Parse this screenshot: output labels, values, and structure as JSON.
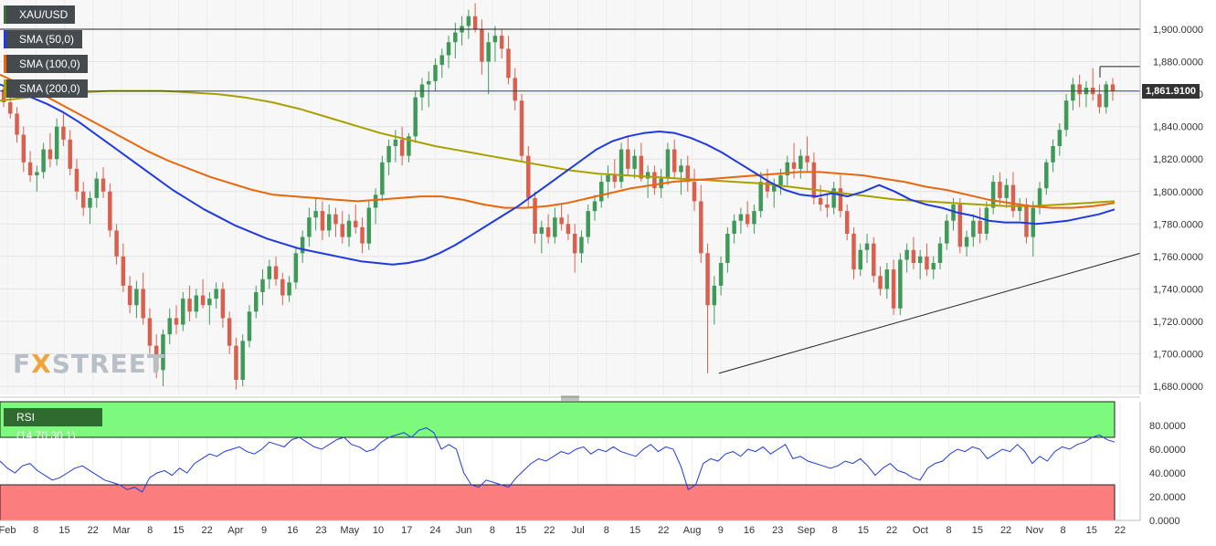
{
  "chart_data": {
    "type": "candlestick",
    "symbol": "XAU/USD",
    "indicators": [
      {
        "name": "SMA (50,0)",
        "color": "#1f3ae0"
      },
      {
        "name": "SMA (100,0)",
        "color": "#e8670c"
      },
      {
        "name": "SMA (200,0)",
        "color": "#a9a000"
      }
    ],
    "last_price": "1,861.9100",
    "price_axis": {
      "ylim": [
        1675,
        1918
      ],
      "ticks": [
        "1,680.0000",
        "1,700.0000",
        "1,720.0000",
        "1,740.0000",
        "1,760.0000",
        "1,780.0000",
        "1,800.0000",
        "1,820.0000",
        "1,840.0000",
        "1,860.0000",
        "1,880.0000",
        "1,900.0000"
      ]
    },
    "x_axis": {
      "labels": [
        "Feb",
        "8",
        "15",
        "22",
        "Mar",
        "8",
        "15",
        "22",
        "Apr",
        "9",
        "16",
        "23",
        "May",
        "10",
        "17",
        "24",
        "Jun",
        "8",
        "15",
        "22",
        "Jul",
        "8",
        "15",
        "22",
        "Aug",
        "9",
        "16",
        "23",
        "Sep",
        "8",
        "15",
        "22",
        "Oct",
        "8",
        "15",
        "22",
        "Nov",
        "8",
        "15",
        "22"
      ]
    },
    "horizontal_lines": [
      1900,
      1861.91
    ],
    "resistance_stub": 1877,
    "trendline": {
      "from": [
        "Aug 9",
        1688
      ],
      "to": [
        "Nov 22",
        1760
      ]
    },
    "candles_ohlc": [
      [
        1863,
        1866,
        1852,
        1855
      ],
      [
        1855,
        1858,
        1845,
        1848
      ],
      [
        1848,
        1852,
        1830,
        1835
      ],
      [
        1835,
        1840,
        1812,
        1818
      ],
      [
        1818,
        1825,
        1806,
        1810
      ],
      [
        1810,
        1816,
        1800,
        1812
      ],
      [
        1812,
        1830,
        1808,
        1826
      ],
      [
        1826,
        1836,
        1815,
        1820
      ],
      [
        1820,
        1845,
        1816,
        1840
      ],
      [
        1840,
        1848,
        1828,
        1832
      ],
      [
        1832,
        1838,
        1810,
        1814
      ],
      [
        1814,
        1820,
        1795,
        1800
      ],
      [
        1800,
        1806,
        1785,
        1790
      ],
      [
        1790,
        1800,
        1780,
        1796
      ],
      [
        1796,
        1812,
        1790,
        1808
      ],
      [
        1808,
        1815,
        1796,
        1800
      ],
      [
        1800,
        1805,
        1772,
        1776
      ],
      [
        1776,
        1780,
        1755,
        1760
      ],
      [
        1760,
        1768,
        1738,
        1742
      ],
      [
        1742,
        1748,
        1725,
        1730
      ],
      [
        1730,
        1745,
        1722,
        1740
      ],
      [
        1740,
        1750,
        1718,
        1722
      ],
      [
        1722,
        1728,
        1700,
        1705
      ],
      [
        1705,
        1712,
        1685,
        1690
      ],
      [
        1690,
        1715,
        1680,
        1712
      ],
      [
        1712,
        1728,
        1706,
        1722
      ],
      [
        1722,
        1730,
        1712,
        1718
      ],
      [
        1718,
        1738,
        1714,
        1734
      ],
      [
        1734,
        1742,
        1720,
        1726
      ],
      [
        1726,
        1740,
        1722,
        1736
      ],
      [
        1736,
        1746,
        1728,
        1730
      ],
      [
        1730,
        1738,
        1718,
        1734
      ],
      [
        1734,
        1744,
        1728,
        1740
      ],
      [
        1740,
        1744,
        1716,
        1722
      ],
      [
        1722,
        1726,
        1700,
        1705
      ],
      [
        1705,
        1710,
        1678,
        1684
      ],
      [
        1684,
        1712,
        1680,
        1708
      ],
      [
        1708,
        1730,
        1704,
        1726
      ],
      [
        1726,
        1742,
        1722,
        1738
      ],
      [
        1738,
        1752,
        1730,
        1746
      ],
      [
        1746,
        1758,
        1740,
        1754
      ],
      [
        1754,
        1760,
        1742,
        1746
      ],
      [
        1746,
        1750,
        1730,
        1736
      ],
      [
        1736,
        1748,
        1732,
        1744
      ],
      [
        1744,
        1766,
        1740,
        1762
      ],
      [
        1762,
        1776,
        1756,
        1772
      ],
      [
        1772,
        1790,
        1766,
        1784
      ],
      [
        1784,
        1796,
        1776,
        1788
      ],
      [
        1788,
        1794,
        1770,
        1776
      ],
      [
        1776,
        1792,
        1772,
        1786
      ],
      [
        1786,
        1790,
        1772,
        1780
      ],
      [
        1780,
        1788,
        1768,
        1772
      ],
      [
        1772,
        1786,
        1766,
        1782
      ],
      [
        1782,
        1792,
        1774,
        1778
      ],
      [
        1778,
        1784,
        1762,
        1768
      ],
      [
        1768,
        1794,
        1764,
        1790
      ],
      [
        1790,
        1802,
        1780,
        1798
      ],
      [
        1798,
        1822,
        1794,
        1818
      ],
      [
        1818,
        1832,
        1810,
        1828
      ],
      [
        1828,
        1838,
        1818,
        1832
      ],
      [
        1832,
        1840,
        1816,
        1822
      ],
      [
        1822,
        1836,
        1818,
        1834
      ],
      [
        1834,
        1862,
        1830,
        1858
      ],
      [
        1858,
        1870,
        1850,
        1866
      ],
      [
        1866,
        1874,
        1852,
        1868
      ],
      [
        1868,
        1882,
        1862,
        1878
      ],
      [
        1878,
        1888,
        1870,
        1884
      ],
      [
        1884,
        1896,
        1876,
        1892
      ],
      [
        1892,
        1904,
        1882,
        1898
      ],
      [
        1898,
        1908,
        1890,
        1902
      ],
      [
        1902,
        1912,
        1894,
        1908
      ],
      [
        1908,
        1916,
        1898,
        1900
      ],
      [
        1900,
        1906,
        1872,
        1880
      ],
      [
        1880,
        1898,
        1860,
        1892
      ],
      [
        1892,
        1902,
        1880,
        1896
      ],
      [
        1896,
        1900,
        1882,
        1888
      ],
      [
        1888,
        1896,
        1866,
        1870
      ],
      [
        1870,
        1876,
        1850,
        1856
      ],
      [
        1856,
        1860,
        1818,
        1822
      ],
      [
        1822,
        1828,
        1790,
        1796
      ],
      [
        1796,
        1800,
        1768,
        1774
      ],
      [
        1774,
        1782,
        1762,
        1778
      ],
      [
        1778,
        1786,
        1768,
        1772
      ],
      [
        1772,
        1790,
        1768,
        1784
      ],
      [
        1784,
        1792,
        1776,
        1780
      ],
      [
        1780,
        1786,
        1770,
        1774
      ],
      [
        1774,
        1780,
        1750,
        1762
      ],
      [
        1762,
        1776,
        1756,
        1772
      ],
      [
        1772,
        1792,
        1768,
        1788
      ],
      [
        1788,
        1798,
        1782,
        1794
      ],
      [
        1794,
        1810,
        1790,
        1806
      ],
      [
        1806,
        1816,
        1796,
        1810
      ],
      [
        1810,
        1820,
        1802,
        1806
      ],
      [
        1806,
        1830,
        1802,
        1826
      ],
      [
        1826,
        1834,
        1810,
        1814
      ],
      [
        1814,
        1826,
        1808,
        1822
      ],
      [
        1822,
        1830,
        1806,
        1808
      ],
      [
        1808,
        1816,
        1796,
        1812
      ],
      [
        1812,
        1816,
        1798,
        1802
      ],
      [
        1802,
        1814,
        1796,
        1808
      ],
      [
        1808,
        1830,
        1804,
        1826
      ],
      [
        1826,
        1832,
        1808,
        1812
      ],
      [
        1812,
        1820,
        1798,
        1816
      ],
      [
        1816,
        1822,
        1800,
        1806
      ],
      [
        1806,
        1814,
        1788,
        1794
      ],
      [
        1794,
        1804,
        1756,
        1762
      ],
      [
        1762,
        1768,
        1688,
        1730
      ],
      [
        1730,
        1748,
        1718,
        1742
      ],
      [
        1742,
        1760,
        1736,
        1756
      ],
      [
        1756,
        1778,
        1750,
        1774
      ],
      [
        1774,
        1786,
        1768,
        1782
      ],
      [
        1782,
        1790,
        1774,
        1786
      ],
      [
        1786,
        1794,
        1778,
        1780
      ],
      [
        1780,
        1792,
        1774,
        1788
      ],
      [
        1788,
        1812,
        1784,
        1806
      ],
      [
        1806,
        1814,
        1796,
        1800
      ],
      [
        1800,
        1808,
        1790,
        1804
      ],
      [
        1804,
        1814,
        1798,
        1810
      ],
      [
        1810,
        1822,
        1804,
        1818
      ],
      [
        1818,
        1830,
        1808,
        1814
      ],
      [
        1814,
        1826,
        1808,
        1822
      ],
      [
        1822,
        1834,
        1812,
        1818
      ],
      [
        1818,
        1824,
        1792,
        1796
      ],
      [
        1796,
        1804,
        1788,
        1792
      ],
      [
        1792,
        1798,
        1784,
        1790
      ],
      [
        1790,
        1806,
        1786,
        1802
      ],
      [
        1802,
        1810,
        1784,
        1788
      ],
      [
        1788,
        1792,
        1770,
        1774
      ],
      [
        1774,
        1778,
        1746,
        1752
      ],
      [
        1752,
        1768,
        1748,
        1764
      ],
      [
        1764,
        1774,
        1756,
        1768
      ],
      [
        1768,
        1772,
        1744,
        1748
      ],
      [
        1748,
        1754,
        1736,
        1740
      ],
      [
        1740,
        1756,
        1734,
        1752
      ],
      [
        1752,
        1758,
        1724,
        1728
      ],
      [
        1728,
        1762,
        1724,
        1758
      ],
      [
        1758,
        1768,
        1750,
        1764
      ],
      [
        1764,
        1772,
        1752,
        1756
      ],
      [
        1756,
        1764,
        1746,
        1760
      ],
      [
        1760,
        1768,
        1748,
        1752
      ],
      [
        1752,
        1760,
        1746,
        1756
      ],
      [
        1756,
        1772,
        1752,
        1768
      ],
      [
        1768,
        1786,
        1764,
        1782
      ],
      [
        1782,
        1796,
        1776,
        1792
      ],
      [
        1792,
        1796,
        1762,
        1766
      ],
      [
        1766,
        1776,
        1760,
        1772
      ],
      [
        1772,
        1786,
        1766,
        1782
      ],
      [
        1782,
        1790,
        1768,
        1774
      ],
      [
        1774,
        1794,
        1770,
        1790
      ],
      [
        1790,
        1810,
        1786,
        1806
      ],
      [
        1806,
        1812,
        1792,
        1796
      ],
      [
        1796,
        1808,
        1790,
        1804
      ],
      [
        1804,
        1812,
        1784,
        1788
      ],
      [
        1788,
        1796,
        1782,
        1792
      ],
      [
        1792,
        1796,
        1768,
        1772
      ],
      [
        1772,
        1794,
        1760,
        1790
      ],
      [
        1790,
        1806,
        1786,
        1802
      ],
      [
        1802,
        1820,
        1798,
        1818
      ],
      [
        1818,
        1832,
        1812,
        1828
      ],
      [
        1828,
        1842,
        1822,
        1838
      ],
      [
        1838,
        1860,
        1834,
        1856
      ],
      [
        1856,
        1870,
        1850,
        1866
      ],
      [
        1866,
        1872,
        1852,
        1860
      ],
      [
        1860,
        1868,
        1852,
        1864
      ],
      [
        1864,
        1876,
        1856,
        1860
      ],
      [
        1860,
        1866,
        1848,
        1852
      ],
      [
        1852,
        1868,
        1848,
        1866
      ],
      [
        1866,
        1870,
        1856,
        1862
      ]
    ],
    "sma50": [
      1866,
      1862,
      1858,
      1854,
      1849,
      1843,
      1836,
      1829,
      1822,
      1815,
      1808,
      1801,
      1795,
      1789,
      1784,
      1779,
      1775,
      1771,
      1768,
      1765,
      1763,
      1761,
      1759,
      1757,
      1756,
      1755,
      1756,
      1758,
      1762,
      1767,
      1773,
      1779,
      1785,
      1791,
      1798,
      1805,
      1812,
      1819,
      1826,
      1831,
      1834,
      1836,
      1837,
      1836,
      1833,
      1829,
      1824,
      1818,
      1812,
      1806,
      1801,
      1798,
      1797,
      1799,
      1797,
      1800,
      1804,
      1800,
      1795,
      1792,
      1790,
      1787,
      1785,
      1782,
      1781,
      1781,
      1780,
      1781,
      1782,
      1784,
      1786,
      1789
    ],
    "sma100": [
      1872,
      1866,
      1860,
      1853,
      1846,
      1839,
      1832,
      1825,
      1819,
      1814,
      1809,
      1805,
      1801,
      1798,
      1797,
      1796,
      1795,
      1794,
      1795,
      1796,
      1797,
      1797,
      1795,
      1792,
      1790,
      1790,
      1791,
      1793,
      1796,
      1799,
      1802,
      1804,
      1806,
      1807,
      1808,
      1809,
      1810,
      1811,
      1812,
      1812,
      1811,
      1810,
      1808,
      1806,
      1803,
      1801,
      1798,
      1795,
      1793,
      1791,
      1790,
      1790,
      1791,
      1793
    ],
    "sma200": [
      1856,
      1858,
      1860,
      1861,
      1862,
      1862,
      1862,
      1861,
      1860,
      1858,
      1855,
      1851,
      1846,
      1841,
      1836,
      1832,
      1828,
      1825,
      1822,
      1819,
      1816,
      1813,
      1811,
      1810,
      1809,
      1808,
      1807,
      1806,
      1805,
      1803,
      1801,
      1799,
      1797,
      1795,
      1794,
      1793,
      1792,
      1791,
      1791,
      1792,
      1793,
      1794
    ],
    "rsi": {
      "label": "RSI (14,70,30,1)",
      "ylim": [
        0,
        100
      ],
      "ticks": [
        "0.0000",
        "20.0000",
        "40.0000",
        "60.0000",
        "80.0000"
      ],
      "overbought": 70,
      "oversold": 30,
      "values": [
        50,
        44,
        40,
        46,
        48,
        42,
        38,
        34,
        36,
        40,
        44,
        46,
        42,
        38,
        34,
        32,
        30,
        26,
        28,
        24,
        36,
        40,
        42,
        38,
        44,
        40,
        48,
        52,
        56,
        54,
        58,
        60,
        62,
        58,
        56,
        60,
        66,
        64,
        62,
        68,
        70,
        66,
        62,
        60,
        64,
        68,
        70,
        64,
        62,
        58,
        60,
        66,
        70,
        72,
        74,
        70,
        76,
        78,
        74,
        60,
        64,
        60,
        40,
        30,
        28,
        34,
        32,
        30,
        28,
        36,
        42,
        48,
        52,
        50,
        54,
        58,
        56,
        60,
        62,
        56,
        60,
        58,
        62,
        58,
        56,
        54,
        60,
        64,
        58,
        62,
        60,
        46,
        26,
        30,
        48,
        52,
        50,
        56,
        58,
        54,
        60,
        58,
        62,
        56,
        60,
        64,
        52,
        54,
        50,
        48,
        46,
        44,
        46,
        50,
        48,
        52,
        46,
        38,
        44,
        48,
        42,
        40,
        36,
        34,
        44,
        48,
        50,
        56,
        60,
        58,
        62,
        60,
        52,
        56,
        60,
        58,
        64,
        58,
        48,
        54,
        50,
        58,
        62,
        60,
        64,
        66,
        70,
        72,
        68,
        66
      ]
    }
  }
}
